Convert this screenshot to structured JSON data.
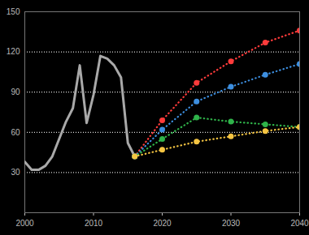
{
  "chart_data": {
    "type": "line",
    "x": [
      2000,
      2001,
      2002,
      2003,
      2004,
      2005,
      2006,
      2007,
      2008,
      2009,
      2010,
      2011,
      2012,
      2013,
      2014,
      2015,
      2016,
      2020,
      2025,
      2030,
      2035,
      2040
    ],
    "series": [
      {
        "color": "#a9a9a9",
        "line_style": "solid",
        "values": [
          38,
          32,
          32,
          35,
          42,
          55,
          68,
          78,
          110,
          67,
          88,
          117,
          115,
          110,
          101,
          52,
          42,
          null,
          null,
          null,
          null,
          null
        ]
      },
      {
        "color": "#ff3b3b",
        "line_style": "dotted",
        "marker": "circle",
        "values": [
          null,
          null,
          null,
          null,
          null,
          null,
          null,
          null,
          null,
          null,
          null,
          null,
          null,
          null,
          null,
          null,
          42,
          69,
          97,
          113,
          127,
          136
        ]
      },
      {
        "color": "#3d8fe0",
        "line_style": "dotted",
        "marker": "circle",
        "values": [
          null,
          null,
          null,
          null,
          null,
          null,
          null,
          null,
          null,
          null,
          null,
          null,
          null,
          null,
          null,
          null,
          42,
          62,
          83,
          94,
          103,
          111
        ]
      },
      {
        "color": "#2fb34a",
        "line_style": "dotted",
        "marker": "circle",
        "values": [
          null,
          null,
          null,
          null,
          null,
          null,
          null,
          null,
          null,
          null,
          null,
          null,
          null,
          null,
          null,
          null,
          42,
          55,
          71,
          68,
          66,
          64
        ]
      },
      {
        "color": "#f5c542",
        "line_style": "dotted",
        "marker": "circle",
        "values": [
          null,
          null,
          null,
          null,
          null,
          null,
          null,
          null,
          null,
          null,
          null,
          null,
          null,
          null,
          null,
          null,
          42,
          47,
          53,
          57,
          61,
          64
        ]
      }
    ],
    "xlim": [
      2000,
      2040
    ],
    "xticks": [
      2000,
      2010,
      2020,
      2030,
      2040
    ],
    "ylim": [
      0,
      150
    ],
    "yticks": [
      30,
      60,
      90,
      120,
      150
    ],
    "grid": true
  }
}
